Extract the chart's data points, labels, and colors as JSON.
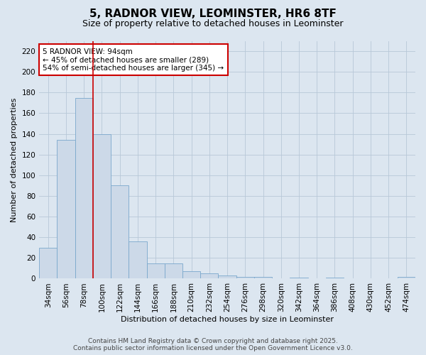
{
  "title_line1": "5, RADNOR VIEW, LEOMINSTER, HR6 8TF",
  "title_line2": "Size of property relative to detached houses in Leominster",
  "xlabel": "Distribution of detached houses by size in Leominster",
  "ylabel": "Number of detached properties",
  "categories": [
    "34sqm",
    "56sqm",
    "78sqm",
    "100sqm",
    "122sqm",
    "144sqm",
    "166sqm",
    "188sqm",
    "210sqm",
    "232sqm",
    "254sqm",
    "276sqm",
    "298sqm",
    "320sqm",
    "342sqm",
    "364sqm",
    "386sqm",
    "408sqm",
    "430sqm",
    "452sqm",
    "474sqm"
  ],
  "values": [
    30,
    134,
    175,
    140,
    90,
    36,
    15,
    15,
    7,
    5,
    3,
    2,
    2,
    0,
    1,
    0,
    1,
    0,
    0,
    0,
    2
  ],
  "bar_color": "#ccd9e8",
  "bar_edge_color": "#7aa8cc",
  "grid_color": "#b8c8d8",
  "background_color": "#dce6f0",
  "vline_x": 2.5,
  "vline_color": "#cc0000",
  "annotation_text": "5 RADNOR VIEW: 94sqm\n← 45% of detached houses are smaller (289)\n54% of semi-detached houses are larger (345) →",
  "annotation_box_facecolor": "#ffffff",
  "annotation_box_edge_color": "#cc0000",
  "footer_line1": "Contains HM Land Registry data © Crown copyright and database right 2025.",
  "footer_line2": "Contains public sector information licensed under the Open Government Licence v3.0.",
  "ylim": [
    0,
    230
  ],
  "yticks": [
    0,
    20,
    40,
    60,
    80,
    100,
    120,
    140,
    160,
    180,
    200,
    220
  ],
  "title_fontsize": 11,
  "subtitle_fontsize": 9,
  "axis_label_fontsize": 8,
  "tick_fontsize": 7.5,
  "annotation_fontsize": 7.5,
  "footer_fontsize": 6.5
}
